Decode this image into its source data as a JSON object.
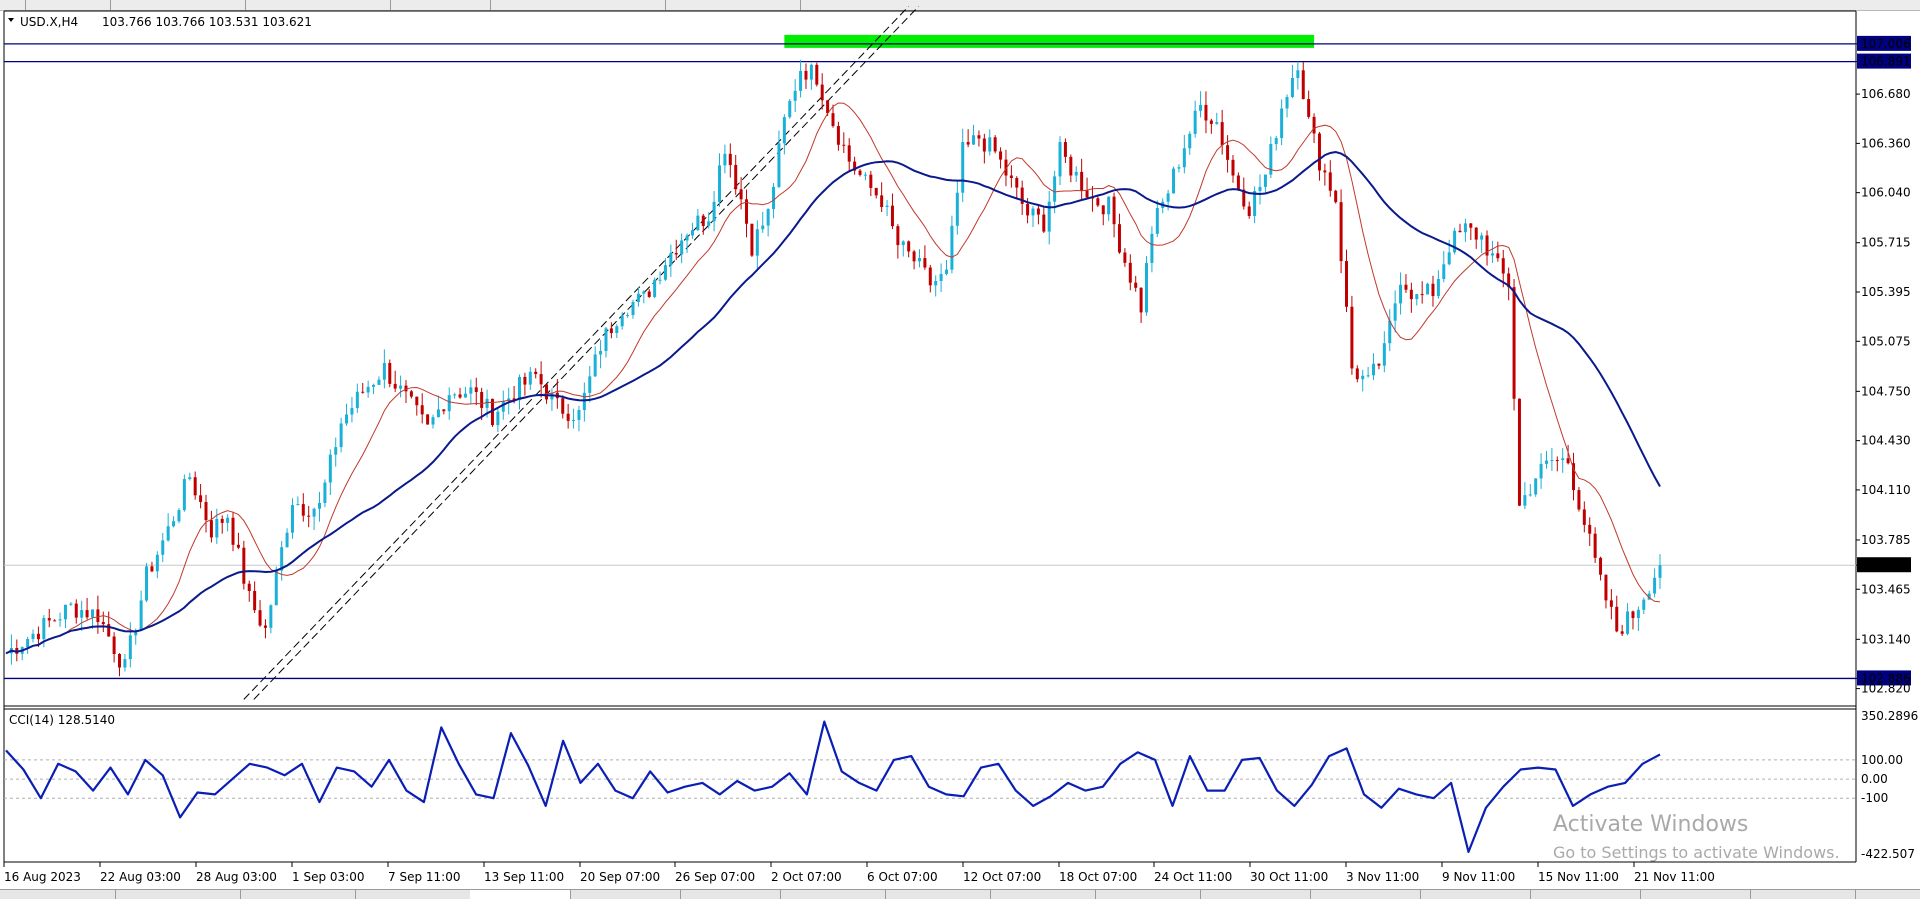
{
  "header": {
    "symbol_label": "USD.X,H4",
    "ohlc": "103.766 103.766 103.531 103.621"
  },
  "indicator": {
    "label": "CCI(14) 128.5140"
  },
  "watermark": {
    "line1": "Activate Windows",
    "line2": "Go to Settings to activate Windows."
  },
  "price_axis_labels": [
    "107.006",
    "106.891",
    "106.680",
    "106.360",
    "106.040",
    "105.715",
    "105.395",
    "105.075",
    "104.750",
    "104.430",
    "104.110",
    "103.785",
    "103.621",
    "103.465",
    "103.140",
    "102.886",
    "102.820"
  ],
  "cci_axis_labels": [
    "350.2896",
    "100.00",
    "0.00",
    "-100",
    "-422.507"
  ],
  "time_axis_labels": [
    "16 Aug 2023",
    "22 Aug 03:00",
    "28 Aug 03:00",
    "1 Sep 03:00",
    "7 Sep 11:00",
    "13 Sep 11:00",
    "20 Sep 07:00",
    "26 Sep 07:00",
    "2 Oct 07:00",
    "6 Oct 07:00",
    "12 Oct 07:00",
    "18 Oct 07:00",
    "24 Oct 11:00",
    "30 Oct 11:00",
    "3 Nov 11:00",
    "9 Nov 11:00",
    "15 Nov 11:00",
    "21 Nov 11:00"
  ],
  "colors": {
    "bull": "#1ab0d8",
    "bear": "#c00000",
    "ma_fast": "#c0392b",
    "ma_slow": "#0a1a8c",
    "cci": "#0b1fb5",
    "zone": "#00ee00",
    "level_line": "#000080",
    "channel": "#000000"
  },
  "chart_data": [
    {
      "type": "candlestick",
      "instrument": "USD.X",
      "timeframe": "H4",
      "last_close": 103.621,
      "ylim": [
        102.72,
        107.2
      ],
      "horizontal_levels": [
        107.006,
        106.891,
        102.886
      ],
      "resistance_zone": {
        "from": 106.891,
        "to": 107.006,
        "x_start": "2 Oct 07:00",
        "x_end": "3 Nov 11:00"
      },
      "trend_channel": {
        "start": "28 Aug 03:00",
        "end": "2 Oct 07:00",
        "direction": "up"
      },
      "overlays": [
        {
          "name": "MA fast",
          "color": "#c0392b"
        },
        {
          "name": "MA slow",
          "color": "#0a1a8c"
        }
      ],
      "x_ticks": [
        "16 Aug 2023",
        "22 Aug 03:00",
        "28 Aug 03:00",
        "1 Sep 03:00",
        "7 Sep 11:00",
        "13 Sep 11:00",
        "20 Sep 07:00",
        "26 Sep 07:00",
        "2 Oct 07:00",
        "6 Oct 07:00",
        "12 Oct 07:00",
        "18 Oct 07:00",
        "24 Oct 11:00",
        "30 Oct 11:00",
        "3 Nov 11:00",
        "9 Nov 11:00",
        "15 Nov 11:00",
        "21 Nov 11:00"
      ],
      "close_path": [
        [
          0,
          103.05
        ],
        [
          6,
          103.2
        ],
        [
          12,
          103.35
        ],
        [
          17,
          103.3
        ],
        [
          22,
          102.95
        ],
        [
          26,
          103.55
        ],
        [
          30,
          103.85
        ],
        [
          34,
          104.2
        ],
        [
          38,
          103.85
        ],
        [
          41,
          103.95
        ],
        [
          45,
          103.4
        ],
        [
          48,
          103.2
        ],
        [
          50,
          103.55
        ],
        [
          53,
          104.05
        ],
        [
          55,
          104.0
        ],
        [
          58,
          104.0
        ],
        [
          62,
          104.55
        ],
        [
          66,
          104.75
        ],
        [
          70,
          104.9
        ],
        [
          74,
          104.7
        ],
        [
          78,
          104.5
        ],
        [
          82,
          104.75
        ],
        [
          86,
          104.75
        ],
        [
          90,
          104.6
        ],
        [
          94,
          104.75
        ],
        [
          98,
          104.85
        ],
        [
          102,
          104.65
        ],
        [
          106,
          104.6
        ],
        [
          110,
          105.05
        ],
        [
          114,
          105.3
        ],
        [
          118,
          105.35
        ],
        [
          122,
          105.6
        ],
        [
          126,
          105.8
        ],
        [
          130,
          105.9
        ],
        [
          133,
          106.35
        ],
        [
          136,
          106.0
        ],
        [
          138,
          105.7
        ],
        [
          141,
          105.9
        ],
        [
          144,
          106.5
        ],
        [
          147,
          106.85
        ],
        [
          150,
          106.8
        ],
        [
          153,
          106.5
        ],
        [
          156,
          106.25
        ],
        [
          159,
          106.1
        ],
        [
          162,
          106.0
        ],
        [
          165,
          105.7
        ],
        [
          168,
          105.6
        ],
        [
          171,
          105.45
        ],
        [
          174,
          105.5
        ],
        [
          177,
          106.3
        ],
        [
          180,
          106.4
        ],
        [
          183,
          106.3
        ],
        [
          186,
          106.1
        ],
        [
          189,
          105.9
        ],
        [
          192,
          105.85
        ],
        [
          195,
          106.3
        ],
        [
          198,
          106.15
        ],
        [
          201,
          106.0
        ],
        [
          204,
          105.95
        ],
        [
          207,
          105.6
        ],
        [
          210,
          105.3
        ],
        [
          212,
          105.8
        ],
        [
          215,
          106.05
        ],
        [
          218,
          106.35
        ],
        [
          221,
          106.6
        ],
        [
          224,
          106.5
        ],
        [
          227,
          106.15
        ],
        [
          230,
          105.95
        ],
        [
          233,
          106.15
        ],
        [
          236,
          106.6
        ],
        [
          239,
          106.9
        ],
        [
          241,
          106.5
        ],
        [
          243,
          106.25
        ],
        [
          246,
          106.0
        ],
        [
          249,
          104.9
        ],
        [
          252,
          104.8
        ],
        [
          255,
          105.0
        ],
        [
          258,
          105.5
        ],
        [
          261,
          105.35
        ],
        [
          264,
          105.4
        ],
        [
          267,
          105.7
        ],
        [
          270,
          105.8
        ],
        [
          273,
          105.75
        ],
        [
          276,
          105.55
        ],
        [
          278,
          105.45
        ],
        [
          280,
          104.0
        ],
        [
          283,
          104.2
        ],
        [
          286,
          104.3
        ],
        [
          289,
          104.3
        ],
        [
          292,
          103.9
        ],
        [
          295,
          103.5
        ],
        [
          298,
          103.2
        ],
        [
          301,
          103.3
        ],
        [
          304,
          103.5
        ],
        [
          306,
          103.62
        ]
      ]
    },
    {
      "type": "line",
      "name": "CCI(14)",
      "last_value": 128.514,
      "ylim": [
        -422.507,
        350.2896
      ],
      "reference_levels": [
        100,
        0,
        -100
      ],
      "values": [
        150,
        50,
        -100,
        80,
        40,
        -60,
        60,
        -80,
        100,
        20,
        -200,
        -70,
        -80,
        0,
        80,
        60,
        20,
        80,
        -120,
        60,
        40,
        -40,
        100,
        -60,
        -120,
        270,
        80,
        -80,
        -100,
        240,
        70,
        -140,
        200,
        -20,
        80,
        -60,
        -100,
        40,
        -70,
        -40,
        -20,
        -80,
        -10,
        -60,
        -40,
        30,
        -80,
        300,
        40,
        -20,
        -60,
        100,
        120,
        -40,
        -80,
        -90,
        60,
        80,
        -60,
        -140,
        -90,
        -20,
        -60,
        -40,
        80,
        140,
        100,
        -140,
        120,
        -60,
        -60,
        100,
        110,
        -60,
        -140,
        -30,
        120,
        160,
        -80,
        -150,
        -50,
        -80,
        -100,
        -20,
        -380,
        -150,
        -40,
        50,
        60,
        50,
        -140,
        -80,
        -40,
        -20,
        80,
        128.5
      ]
    }
  ]
}
